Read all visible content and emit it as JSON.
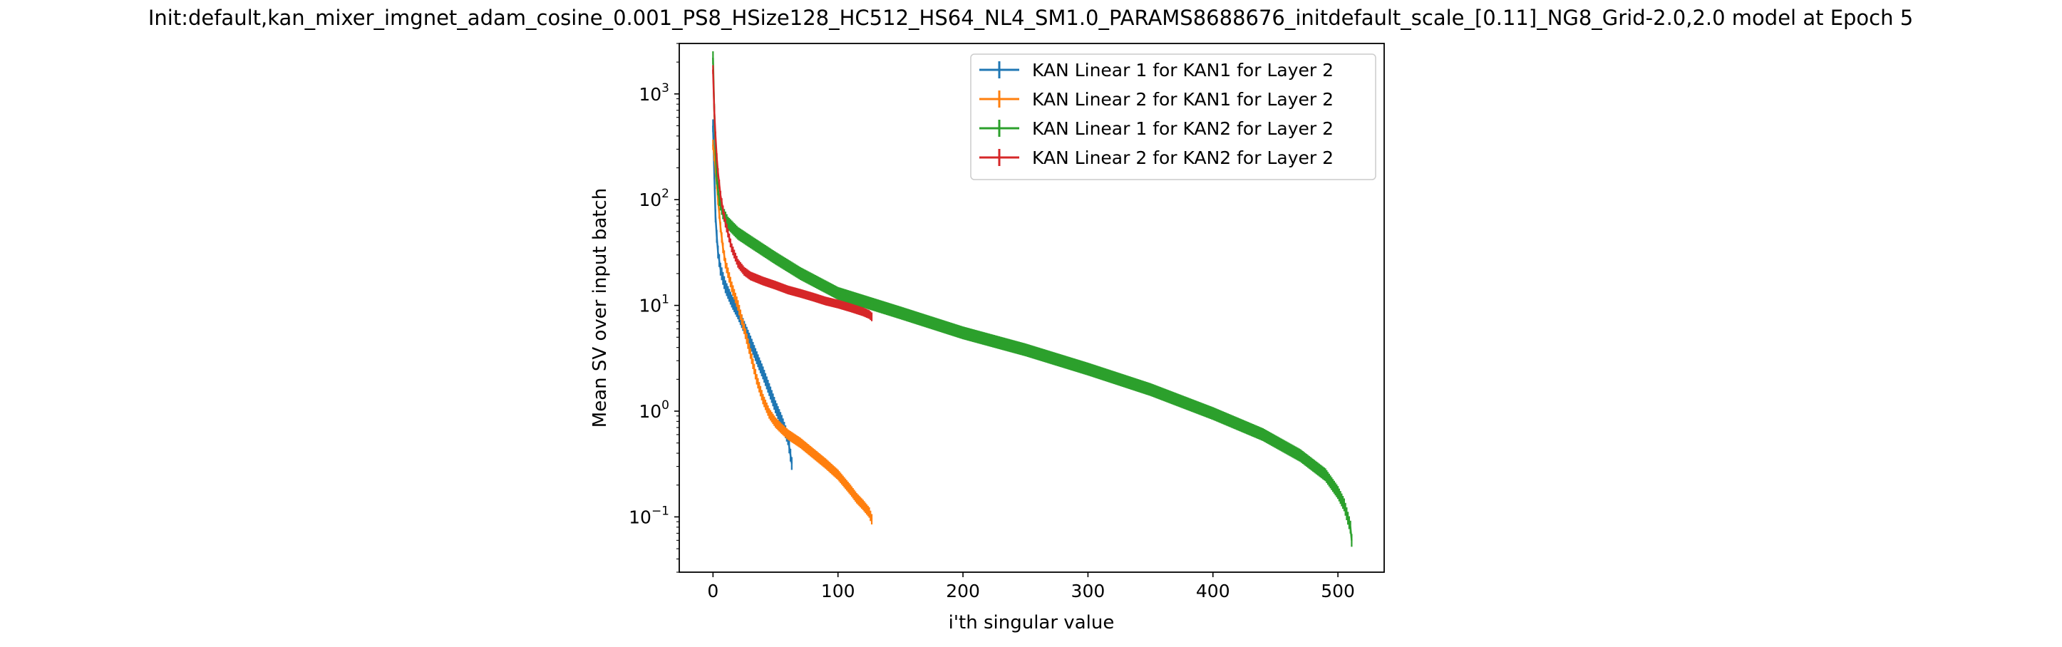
{
  "chart_data": {
    "type": "line",
    "title": "Init:default,kan_mixer_imgnet_adam_cosine_0.001_PS8_HSize128_HC512_HS64_NL4_SM1.0_PARAMS8688676_initdefault_scale_[0.11]_NG8_Grid-2.0,2.0 model at Epoch 5",
    "xlabel": "i'th singular value",
    "ylabel": "Mean SV over input batch",
    "xlim": [
      -27,
      537
    ],
    "ylim": [
      0.03,
      3000
    ],
    "yscale": "log",
    "xticks": [
      0,
      100,
      200,
      300,
      400,
      500
    ],
    "xtick_labels": [
      "0",
      "100",
      "200",
      "300",
      "400",
      "500"
    ],
    "yticks": [
      0.1,
      1,
      10,
      100,
      1000
    ],
    "ytick_labels": [
      {
        "base": "10",
        "exp": "−1"
      },
      {
        "base": "10",
        "exp": "0"
      },
      {
        "base": "10",
        "exp": "1"
      },
      {
        "base": "10",
        "exp": "2"
      },
      {
        "base": "10",
        "exp": "3"
      }
    ],
    "grid": false,
    "legend_position": "top-right",
    "error_bars": true,
    "series": [
      {
        "name": "KAN Linear 1 for KAN1 for Layer 2",
        "color": "#1f77b4",
        "n": 64,
        "x": [
          0,
          1,
          2,
          3,
          4,
          6,
          8,
          10,
          15,
          20,
          25,
          30,
          35,
          40,
          45,
          50,
          55,
          60,
          63
        ],
        "y": [
          500,
          180,
          70,
          45,
          32,
          22,
          18,
          15,
          11,
          8.5,
          6.2,
          4.5,
          3.2,
          2.3,
          1.6,
          1.1,
          0.8,
          0.55,
          0.32
        ],
        "err_rel": 0.15
      },
      {
        "name": "KAN Linear 2 for KAN1 for Layer 2",
        "color": "#ff7f0e",
        "n": 128,
        "x": [
          0,
          1,
          2,
          4,
          6,
          8,
          10,
          15,
          20,
          25,
          30,
          35,
          40,
          45,
          50,
          55,
          60,
          70,
          80,
          90,
          100,
          110,
          115,
          120,
          125,
          127
        ],
        "y": [
          330,
          260,
          200,
          100,
          55,
          35,
          25,
          15,
          10,
          6,
          3.5,
          2,
          1.3,
          0.95,
          0.78,
          0.68,
          0.6,
          0.5,
          0.4,
          0.32,
          0.25,
          0.18,
          0.15,
          0.13,
          0.11,
          0.095
        ],
        "err_rel": 0.12
      },
      {
        "name": "KAN Linear 1 for KAN2 for Layer 2",
        "color": "#2ca02c",
        "n": 512,
        "x": [
          0,
          1,
          2,
          3,
          5,
          8,
          12,
          20,
          30,
          50,
          70,
          100,
          150,
          200,
          250,
          300,
          350,
          400,
          440,
          470,
          490,
          500,
          505,
          510,
          511
        ],
        "y": [
          2200,
          700,
          300,
          160,
          100,
          75,
          60,
          48,
          40,
          28,
          20,
          13,
          8.5,
          5.5,
          3.8,
          2.5,
          1.6,
          0.95,
          0.6,
          0.38,
          0.25,
          0.17,
          0.13,
          0.08,
          0.06
        ],
        "err_rel": 0.15
      },
      {
        "name": "KAN Linear 2 for KAN2 for Layer 2",
        "color": "#d62728",
        "n": 128,
        "x": [
          0,
          1,
          2,
          3,
          4,
          6,
          8,
          10,
          15,
          20,
          25,
          30,
          40,
          50,
          60,
          70,
          80,
          90,
          100,
          110,
          120,
          125,
          127
        ],
        "y": [
          1700,
          700,
          400,
          250,
          180,
          110,
          80,
          60,
          35,
          25,
          21,
          19,
          17,
          15.5,
          14,
          13,
          12,
          11,
          10.3,
          9.5,
          8.7,
          8.2,
          7.8
        ],
        "err_rel": 0.1
      }
    ]
  }
}
